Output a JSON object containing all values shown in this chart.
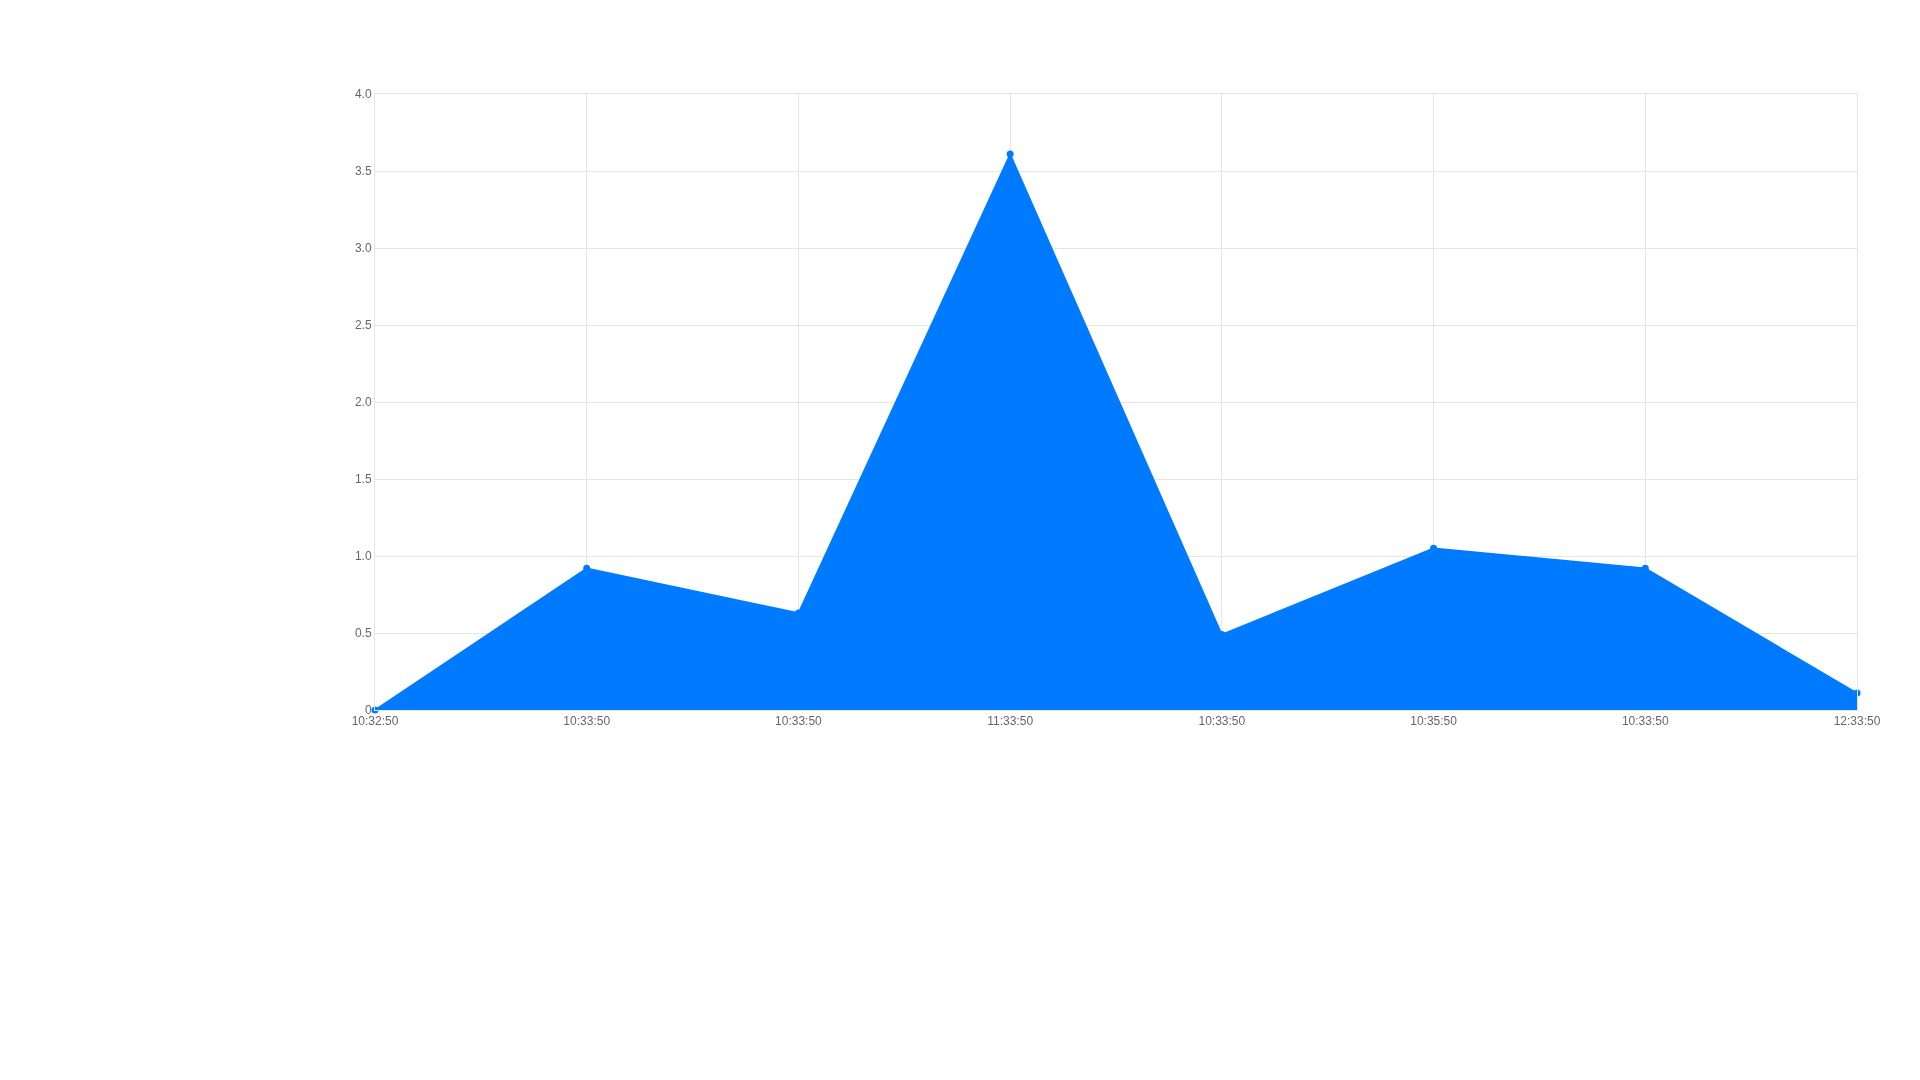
{
  "chart_data": {
    "type": "area",
    "categories": [
      "10:32:50",
      "10:33:50",
      "10:33:50",
      "11:33:50",
      "10:33:50",
      "10:35:50",
      "10:33:50",
      "12:33:50"
    ],
    "series": [
      {
        "color": "#007bff",
        "values": [
          0,
          0.92,
          0.63,
          3.61,
          0.49,
          1.05,
          0.92,
          0.11
        ]
      }
    ],
    "ylim": [
      0,
      4.0
    ],
    "yticks": [
      0,
      {
        "value": 0.5,
        "label": "0.5"
      },
      {
        "value": 1.0,
        "label": "1.0"
      },
      {
        "value": 1.5,
        "label": "1.5"
      },
      {
        "value": 2.0,
        "label": "2.0"
      },
      {
        "value": 2.5,
        "label": "2.5"
      },
      {
        "value": 3.0,
        "label": "3.0"
      },
      {
        "value": 3.5,
        "label": "3.5"
      },
      {
        "value": 4.0,
        "label": "4.0"
      }
    ],
    "grid": true,
    "marker": "circle",
    "legend": false
  }
}
